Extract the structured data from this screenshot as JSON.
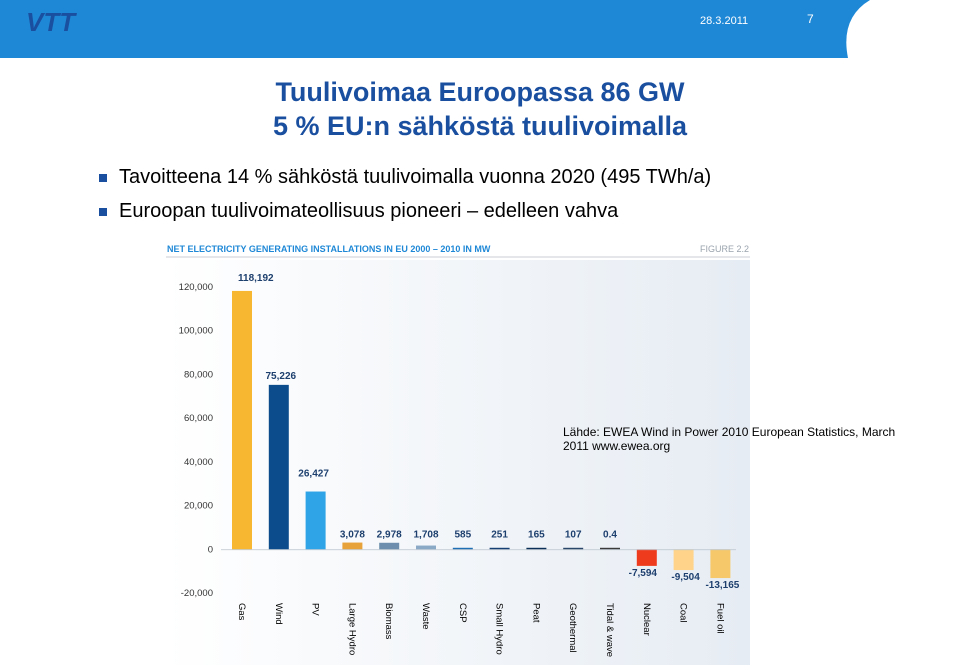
{
  "header": {
    "date": "28.3.2011",
    "page_number": "7",
    "logo_text": "VTT",
    "bar_color": "#1f88d6"
  },
  "slide": {
    "title_line1": "Tuulivoimaa Euroopassa 86 GW",
    "title_line2": "5 % EU:n sähköstä tuulivoimalla",
    "bullets": [
      "Tavoitteena 14 % sähköstä tuulivoimalla vuonna 2020 (495 TWh/a)",
      "Euroopan tuulivoimateollisuus pioneeri – edelleen vahva"
    ],
    "source_note": "Lähde: EWEA Wind in Power 2010 European Statistics, March 2011 www.ewea.org"
  },
  "chart_data": {
    "type": "bar",
    "title": "NET ELECTRICITY GENERATING INSTALLATIONS IN EU 2000 – 2010 IN MW",
    "figure_label": "FIGURE 2.2",
    "categories": [
      "Gas",
      "Wind",
      "PV",
      "Large Hydro",
      "Biomass",
      "Waste",
      "CSP",
      "Small Hydro",
      "Peat",
      "Geothermal",
      "Tidal & wave",
      "Nuclear",
      "Coal",
      "Fuel oil"
    ],
    "values": [
      118192,
      75226,
      26427,
      3078,
      2978,
      1708,
      585,
      251,
      165,
      107,
      0.4,
      -7594,
      -9504,
      -13165
    ],
    "value_labels": [
      "118,192",
      "75,226",
      "26,427",
      "3,078",
      "2,978",
      "1,708",
      "585",
      "251",
      "165",
      "107",
      "0.4",
      "-7,594",
      "-9,504",
      "-13,165"
    ],
    "colors": [
      "#f7b731",
      "#0d4c8c",
      "#2fa4e7",
      "#e8a23a",
      "#6d8fad",
      "#8aa9c7",
      "#1e6fb3",
      "#163f73",
      "#0b2f57",
      "#2a4668",
      "#3a3a3a",
      "#ee3b1e",
      "#ffd48a",
      "#f6c86a"
    ],
    "yticks": [
      "120,000",
      "100,000",
      "80,000",
      "60,000",
      "40,000",
      "20,000",
      "0",
      "-20,000"
    ],
    "ytick_values": [
      120000,
      100000,
      80000,
      60000,
      40000,
      20000,
      0,
      -20000
    ],
    "ylim": [
      -20000,
      120000
    ],
    "grid": false
  }
}
